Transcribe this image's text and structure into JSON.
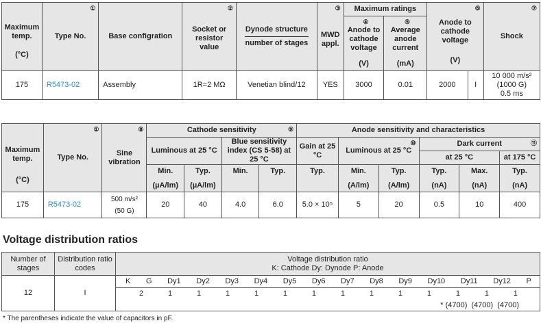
{
  "table1": {
    "headers": {
      "max_temp": "Maximum temp.",
      "max_temp_unit": "(°C)",
      "type_no": "Type No.",
      "type_no_num": "①",
      "base_config": "Base configration",
      "socket": "Socket or resistor value",
      "socket_num": "②",
      "dynode": "Dynode structure",
      "dynode_sub": "number of stages",
      "mwd": "MWD appl.",
      "mwd_num": "③",
      "max_ratings": "Maximum ratings",
      "anode_voltage": "Anode to cathode voltage",
      "anode_voltage_num": "④",
      "anode_voltage_unit": "(V)",
      "avg_current": "Average anode current",
      "avg_current_num": "⑤",
      "avg_current_unit": "(mA)",
      "anode_cathode": "Anode to cathode voltage",
      "anode_cathode_num": "⑥",
      "anode_cathode_unit": "(V)",
      "shock": "Shock",
      "shock_num": "⑦"
    },
    "row": {
      "max_temp": "175",
      "type_no": "R5473-02",
      "base_config": "Assembly",
      "socket": "1R=2 MΩ",
      "dynode": "Venetian blind/12",
      "mwd": "YES",
      "anode_voltage": "3000",
      "avg_current": "0.01",
      "anode_cathode": "2000",
      "anode_cathode_code": "I",
      "shock_1": "10 000 m/s²",
      "shock_2": "(1000 G)",
      "shock_3": "0.5 ms"
    }
  },
  "table2": {
    "headers": {
      "max_temp": "Maximum temp.",
      "max_temp_unit": "(°C)",
      "type_no": "Type No.",
      "type_no_num": "①",
      "sine": "Sine vibration",
      "sine_num": "⑧",
      "cathode_sens": "Cathode sensitivity",
      "cathode_sens_num": "⑨",
      "luminous": "Luminous at 25 °C",
      "blue": "Blue sensitivity index (CS 5-58) at 25 °C",
      "anode_sens": "Anode sensitivity and characteristics",
      "gain": "Gain at 25 °C",
      "anode_luminous": "Luminous at 25 °C",
      "anode_luminous_num": "⑩",
      "dark": "Dark current",
      "dark_num": "⑪",
      "dark_25": "at 25 °C",
      "dark_175": "at 175 °C",
      "min": "Min.",
      "typ": "Typ.",
      "max": "Max.",
      "u_ua": "(µA/lm)",
      "u_alm": "(A/lm)",
      "u_na": "(nA)"
    },
    "row": {
      "max_temp": "175",
      "type_no": "R5473-02",
      "sine_1": "500 m/s²",
      "sine_2": "(50 G)",
      "lum_min": "20",
      "lum_typ": "40",
      "blue_min": "4.0",
      "blue_typ": "6.0",
      "gain": "5.0 × 10⁵",
      "alum_min": "5",
      "alum_typ": "20",
      "dark25_typ": "0.5",
      "dark25_max": "10",
      "dark175_typ": "400"
    }
  },
  "section_title": "Voltage distribution ratios",
  "table3": {
    "headers": {
      "stages": "Number of stages",
      "codes": "Distribution ratio codes",
      "ratio_title": "Voltage distribution ratio",
      "ratio_sub": "K: Cathode  Dy: Dynode  P: Anode"
    },
    "electrodes": [
      "K",
      "G",
      "Dy1",
      "Dy2",
      "Dy3",
      "Dy4",
      "Dy5",
      "Dy6",
      "Dy7",
      "Dy8",
      "Dy9",
      "Dy10",
      "Dy11",
      "Dy12",
      "P"
    ],
    "ratios": [
      "2",
      "1",
      "1",
      "1",
      "1",
      "1",
      "1",
      "1",
      "1",
      "1",
      "1",
      "1",
      "1",
      "1"
    ],
    "caps": [
      "* (4700)",
      "(4700)",
      "(4700)"
    ],
    "row": {
      "stages": "12",
      "codes": "I"
    }
  },
  "footnote": "* The parentheses indicate the value of capacitors in pF."
}
